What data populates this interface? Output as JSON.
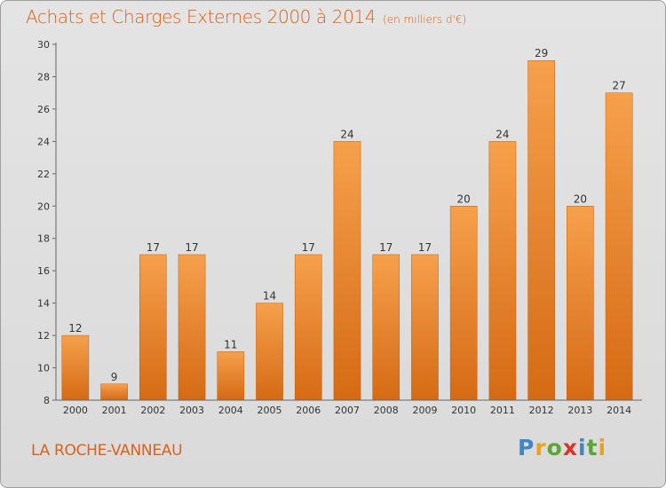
{
  "chart_data": {
    "type": "bar",
    "title": "Achats et Charges Externes 2000 à 2014",
    "subtitle": "(en milliers d'€)",
    "categories": [
      "2000",
      "2001",
      "2002",
      "2003",
      "2004",
      "2005",
      "2006",
      "2007",
      "2008",
      "2009",
      "2010",
      "2011",
      "2012",
      "2013",
      "2014"
    ],
    "values": [
      12,
      9,
      17,
      17,
      11,
      14,
      17,
      24,
      17,
      17,
      20,
      24,
      29,
      20,
      27
    ],
    "ylim": [
      8,
      30
    ],
    "yticks": [
      8,
      10,
      12,
      14,
      16,
      18,
      20,
      22,
      24,
      26,
      28,
      30
    ],
    "grid": false,
    "bar_color": "#f0923a"
  },
  "commune": "LA ROCHE-VANNEAU",
  "logo": {
    "letters": [
      "P",
      "r",
      "o",
      "x",
      "i",
      "t",
      "i"
    ],
    "colors": [
      "#3f86c9",
      "#e9a21b",
      "#5aa832",
      "#d9342b",
      "#3f86c9",
      "#5aa832",
      "#e9a21b"
    ]
  }
}
